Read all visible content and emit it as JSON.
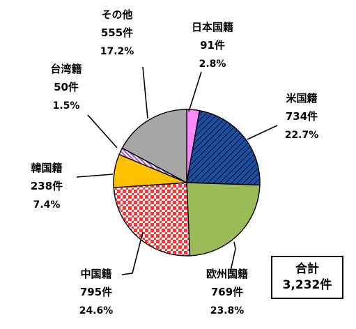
{
  "chart_data": {
    "type": "pie",
    "title": "",
    "slices": [
      {
        "key": "japan",
        "name": "日本国籍",
        "count": "91件",
        "pct": "2.8%",
        "value": 91,
        "color": "#ff88ff",
        "pattern": "solid"
      },
      {
        "key": "us",
        "name": "米国籍",
        "count": "734件",
        "pct": "22.7%",
        "value": 734,
        "color": "#1f4e9c",
        "pattern": "hatch"
      },
      {
        "key": "europe",
        "name": "欧州国籍",
        "count": "769件",
        "pct": "23.8%",
        "value": 769,
        "color": "#9bbb59",
        "pattern": "solid"
      },
      {
        "key": "china",
        "name": "中国籍",
        "count": "795件",
        "pct": "24.6%",
        "value": 795,
        "color": "#ff3333",
        "pattern": "grid"
      },
      {
        "key": "korea",
        "name": "韓国籍",
        "count": "238件",
        "pct": "7.4%",
        "value": 238,
        "color": "#ffc000",
        "pattern": "solid"
      },
      {
        "key": "taiwan",
        "name": "台湾籍",
        "count": "50件",
        "pct": "1.5%",
        "value": 50,
        "color": "#9966cc",
        "pattern": "stripe"
      },
      {
        "key": "other",
        "name": "その他",
        "count": "555件",
        "pct": "17.2%",
        "value": 555,
        "color": "#a6a6a6",
        "pattern": "solid"
      }
    ],
    "start_angle": "12 o'clock",
    "direction": "clockwise",
    "total": {
      "label": "合計",
      "value": "3,232件"
    }
  }
}
